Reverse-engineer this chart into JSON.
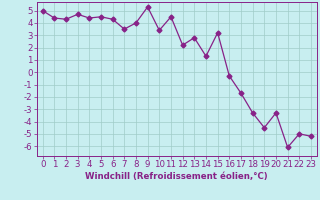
{
  "x": [
    0,
    1,
    2,
    3,
    4,
    5,
    6,
    7,
    8,
    9,
    10,
    11,
    12,
    13,
    14,
    15,
    16,
    17,
    18,
    19,
    20,
    21,
    22,
    23
  ],
  "y": [
    5.0,
    4.4,
    4.3,
    4.7,
    4.4,
    4.5,
    4.3,
    3.5,
    4.0,
    5.3,
    3.4,
    4.5,
    2.2,
    2.8,
    1.3,
    3.2,
    -0.3,
    -1.7,
    -3.3,
    -4.5,
    -3.3,
    -6.1,
    -5.0,
    -5.2
  ],
  "line_color": "#882288",
  "marker": "D",
  "marker_size": 2.5,
  "background_color": "#c8eef0",
  "grid_color": "#a0ccc8",
  "xlabel": "Windchill (Refroidissement éolien,°C)",
  "ylim": [
    -6.8,
    5.7
  ],
  "xlim": [
    -0.5,
    23.5
  ],
  "yticks": [
    5,
    4,
    3,
    2,
    1,
    0,
    -1,
    -2,
    -3,
    -4,
    -5,
    -6
  ],
  "xticks": [
    0,
    1,
    2,
    3,
    4,
    5,
    6,
    7,
    8,
    9,
    10,
    11,
    12,
    13,
    14,
    15,
    16,
    17,
    18,
    19,
    20,
    21,
    22,
    23
  ],
  "tick_color": "#882288",
  "label_color": "#882288",
  "label_fontsize": 6.2,
  "tick_fontsize": 6.2,
  "border_color": "#882288"
}
